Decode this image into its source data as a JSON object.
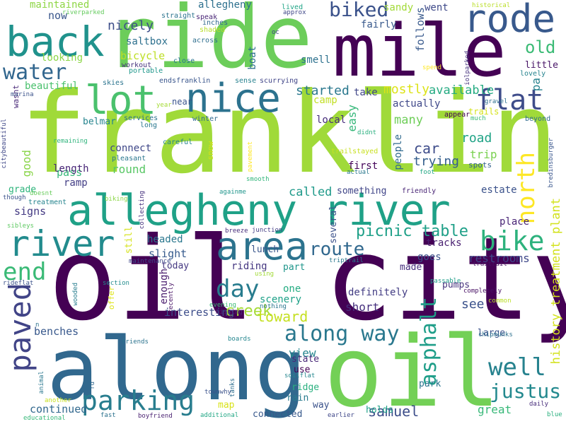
{
  "words": [
    {
      "text": "franklin",
      "color": "#a0da39"
    },
    {
      "text": "oil city",
      "color": "#440154"
    },
    {
      "text": "along",
      "color": "#31688e"
    },
    {
      "text": "oil",
      "color": "#73d056"
    },
    {
      "text": "ride",
      "color": "#6ccd5a"
    },
    {
      "text": "mile",
      "color": "#440154"
    },
    {
      "text": "allegheny river",
      "color": "#1fa187"
    },
    {
      "text": "back",
      "color": "#20928c"
    },
    {
      "text": "nice",
      "color": "#2c728e"
    },
    {
      "text": "rode",
      "color": "#38598c"
    },
    {
      "text": "lot",
      "color": "#4ac16d"
    },
    {
      "text": "river",
      "color": "#228b8d"
    },
    {
      "text": "area",
      "color": "#2c738e"
    },
    {
      "text": "paved",
      "color": "#414487"
    },
    {
      "text": "bike",
      "color": "#2db27d"
    },
    {
      "text": "parking",
      "color": "#287d8e"
    },
    {
      "text": "north",
      "color": "#fde725"
    },
    {
      "text": "end",
      "color": "#3aba76"
    },
    {
      "text": "water",
      "color": "#31668e"
    },
    {
      "text": "flat",
      "color": "#3e4c8a"
    },
    {
      "text": "well",
      "color": "#26828e"
    },
    {
      "text": "justus",
      "color": "#23898e"
    },
    {
      "text": "along way",
      "color": "#2a788e"
    },
    {
      "text": "asphalt",
      "color": "#1f9e89"
    },
    {
      "text": "day",
      "color": "#287c8e"
    },
    {
      "text": "route",
      "color": "#31688e"
    },
    {
      "text": "biked",
      "color": "#3b528b"
    },
    {
      "text": "old",
      "color": "#3bbb75"
    },
    {
      "text": "picnic table",
      "color": "#1fa088"
    },
    {
      "text": "creek",
      "color": "#a5db36"
    },
    {
      "text": "toward",
      "color": "#c5e021"
    },
    {
      "text": "samuel",
      "color": "#3d4e8a"
    },
    {
      "text": "mostly",
      "color": "#dde318"
    },
    {
      "text": "started",
      "color": "#2a788e"
    },
    {
      "text": "available",
      "color": "#25ab82"
    },
    {
      "text": "history treatment plant",
      "color": "#d2e21b"
    },
    {
      "text": "car",
      "color": "#3e4c8a"
    },
    {
      "text": "trying",
      "color": "#355f8d"
    },
    {
      "text": "restrooms",
      "color": "#3f4889"
    },
    {
      "text": "great",
      "color": "#37b878"
    },
    {
      "text": "view",
      "color": "#24868e"
    },
    {
      "text": "short",
      "color": "#46307e"
    },
    {
      "text": "many",
      "color": "#6ece58"
    },
    {
      "text": "see",
      "color": "#3b528b"
    },
    {
      "text": "called",
      "color": "#1f9a8a"
    },
    {
      "text": "continued",
      "color": "#31688e"
    },
    {
      "text": "maintained",
      "color": "#8ed645"
    },
    {
      "text": "nicely",
      "color": "#3d4e8a"
    },
    {
      "text": "bicycle",
      "color": "#bddf26"
    },
    {
      "text": "saltbox",
      "color": "#2d708e"
    },
    {
      "text": "allegheny",
      "color": "#2d708e"
    },
    {
      "text": "follows",
      "color": "#38598c"
    },
    {
      "text": "fairly",
      "color": "#38598c"
    },
    {
      "text": "sandy",
      "color": "#a2da37"
    },
    {
      "text": "went",
      "color": "#3e4989"
    },
    {
      "text": "road",
      "color": "#20a386"
    },
    {
      "text": "trip",
      "color": "#7ad151"
    },
    {
      "text": "pa",
      "color": "#26828e"
    },
    {
      "text": "now",
      "color": "#39568c"
    },
    {
      "text": "looking",
      "color": "#8bd646"
    },
    {
      "text": "beautiful",
      "color": "#4ac16d"
    },
    {
      "text": "smell",
      "color": "#2d718e"
    },
    {
      "text": "boat",
      "color": "#2d708e"
    },
    {
      "text": "camp",
      "color": "#c2df23"
    },
    {
      "text": "take",
      "color": "#404688"
    },
    {
      "text": "actually",
      "color": "#3f4889"
    },
    {
      "text": "local",
      "color": "#472d7b"
    },
    {
      "text": "easy",
      "color": "#35b779"
    },
    {
      "text": "good",
      "color": "#89d548"
    },
    {
      "text": "pass",
      "color": "#35b779"
    },
    {
      "text": "connect",
      "color": "#3f4788"
    },
    {
      "text": "round",
      "color": "#58c765"
    },
    {
      "text": "length",
      "color": "#482677"
    },
    {
      "text": "ramp",
      "color": "#433e85"
    },
    {
      "text": "signs",
      "color": "#443a83"
    },
    {
      "text": "grade",
      "color": "#2fb47c"
    },
    {
      "text": "first",
      "color": "#450559"
    },
    {
      "text": "people",
      "color": "#306a8e"
    },
    {
      "text": "estate",
      "color": "#3b528b"
    },
    {
      "text": "place",
      "color": "#482475"
    },
    {
      "text": "tracks",
      "color": "#481f70"
    },
    {
      "text": "goes",
      "color": "#3b528b"
    },
    {
      "text": "made",
      "color": "#472f7d"
    },
    {
      "text": "pumps",
      "color": "#46337e"
    },
    {
      "text": "interesting",
      "color": "#3d4d8a"
    },
    {
      "text": "definitely",
      "color": "#433d84"
    },
    {
      "text": "scenery",
      "color": "#1fa188"
    },
    {
      "text": "one",
      "color": "#25ac82"
    },
    {
      "text": "riding",
      "color": "#453781"
    },
    {
      "text": "today",
      "color": "#453882"
    },
    {
      "text": "enough",
      "color": "#481b6d"
    },
    {
      "text": "slight",
      "color": "#375b8d"
    },
    {
      "text": "headed",
      "color": "#2a778e"
    },
    {
      "text": "benches",
      "color": "#38588c"
    },
    {
      "text": "lunch",
      "color": "#39568c"
    },
    {
      "text": "something",
      "color": "#404588"
    },
    {
      "text": "several",
      "color": "#3b528b"
    },
    {
      "text": "part",
      "color": "#1f968b"
    },
    {
      "text": "state",
      "color": "#482878"
    },
    {
      "text": "use",
      "color": "#440154"
    },
    {
      "text": "ridge",
      "color": "#2ab07f"
    },
    {
      "text": "rain",
      "color": "#297b8e"
    },
    {
      "text": "way",
      "color": "#3b528b"
    },
    {
      "text": "map",
      "color": "#d8e219"
    },
    {
      "text": "holds",
      "color": "#1fa188"
    },
    {
      "text": "connected",
      "color": "#38598c"
    },
    {
      "text": "park",
      "color": "#2b758e"
    },
    {
      "text": "large",
      "color": "#3b528b"
    },
    {
      "text": "trails",
      "color": "#d5e21a"
    },
    {
      "text": "spots",
      "color": "#33628d"
    },
    {
      "text": "little",
      "color": "#481467"
    },
    {
      "text": "lovely",
      "color": "#25838e"
    },
    {
      "text": "beyond",
      "color": "#2f6c8e"
    },
    {
      "text": "friendly",
      "color": "#482475"
    },
    {
      "text": "near",
      "color": "#3a548c"
    },
    {
      "text": "belmar",
      "color": "#25848e"
    },
    {
      "text": "skies",
      "color": "#2b748e"
    },
    {
      "text": "workout",
      "color": "#46327e"
    },
    {
      "text": "portable",
      "color": "#1f978b"
    },
    {
      "text": "close",
      "color": "#2a768e"
    },
    {
      "text": "speak",
      "color": "#482576"
    },
    {
      "text": "inches",
      "color": "#31688e"
    },
    {
      "text": "shaded",
      "color": "#b8de29"
    },
    {
      "text": "across",
      "color": "#2e6e8e"
    },
    {
      "text": "sense",
      "color": "#26818e"
    },
    {
      "text": "scurrying",
      "color": "#404588"
    },
    {
      "text": "endsfranklin",
      "color": "#39558c"
    },
    {
      "text": "straight",
      "color": "#2b748e"
    },
    {
      "text": "lived",
      "color": "#20a486"
    },
    {
      "text": "approx",
      "color": "#3f4788"
    },
    {
      "text": "oc",
      "color": "#3f4788"
    },
    {
      "text": "riverparked",
      "color": "#65cb5e"
    },
    {
      "text": "historical",
      "color": "#bade28"
    },
    {
      "text": "spend",
      "color": "#fde725"
    },
    {
      "text": "iolparked",
      "color": "#46337e"
    },
    {
      "text": "gravel",
      "color": "#2d708e"
    },
    {
      "text": "appear",
      "color": "#440154"
    },
    {
      "text": "much",
      "color": "#3aba76"
    },
    {
      "text": "careful",
      "color": "#25838e"
    },
    {
      "text": "services",
      "color": "#2c738e"
    },
    {
      "text": "long",
      "color": "#2a788e"
    },
    {
      "text": "year",
      "color": "#a5db36"
    },
    {
      "text": "winter",
      "color": "#30698e"
    },
    {
      "text": "snow",
      "color": "#d2e21b"
    },
    {
      "text": "pleasant",
      "color": "#2a778e"
    },
    {
      "text": "wasnt",
      "color": "#482878"
    },
    {
      "text": "marina",
      "color": "#3b528b"
    },
    {
      "text": "remaining",
      "color": "#2fb47c"
    },
    {
      "text": "citybeautiful",
      "color": "#3f4788"
    },
    {
      "text": "treatment",
      "color": "#25848e"
    },
    {
      "text": "though",
      "color": "#3b528b"
    },
    {
      "text": "doesnt",
      "color": "#67cc5c"
    },
    {
      "text": "sibleys",
      "color": "#5ec962"
    },
    {
      "text": "biking",
      "color": "#8bd646"
    },
    {
      "text": "collecting",
      "color": "#46327e"
    },
    {
      "text": "againme",
      "color": "#1f958b"
    },
    {
      "text": "smooth",
      "color": "#32b67a"
    },
    {
      "text": "pavement",
      "color": "#fde725"
    },
    {
      "text": "trailstayed",
      "color": "#c8e020"
    },
    {
      "text": "didnt",
      "color": "#2ab07f"
    },
    {
      "text": "actual",
      "color": "#2a788e"
    },
    {
      "text": "foot",
      "color": "#22a884"
    },
    {
      "text": "bredinsburger",
      "color": "#39568c"
    },
    {
      "text": "breeze",
      "color": "#472d7b"
    },
    {
      "text": "junction",
      "color": "#433e85"
    },
    {
      "text": "still",
      "color": "#d5e21a"
    },
    {
      "text": "maintenance",
      "color": "#3e4989"
    },
    {
      "text": "triptrail",
      "color": "#2a788e"
    },
    {
      "text": "traitrail",
      "color": "#471164"
    },
    {
      "text": "using",
      "color": "#a2da37"
    },
    {
      "text": "rideflat",
      "color": "#3b528b"
    },
    {
      "text": "section",
      "color": "#228c8d"
    },
    {
      "text": "recently",
      "color": "#471365"
    },
    {
      "text": "wooded",
      "color": "#287d8e"
    },
    {
      "text": "offer",
      "color": "#dde318"
    },
    {
      "text": "evening",
      "color": "#3aba76"
    },
    {
      "text": "missing",
      "color": "#482878"
    },
    {
      "text": "passable",
      "color": "#1f9e89"
    },
    {
      "text": "completely",
      "color": "#471063"
    },
    {
      "text": "common",
      "color": "#bade28"
    },
    {
      "text": "chipmunks",
      "color": "#2d708e"
    },
    {
      "text": "n",
      "color": "#2c728e"
    },
    {
      "text": "friends",
      "color": "#2c738e"
    },
    {
      "text": "boards",
      "color": "#24868e"
    },
    {
      "text": "soilflat",
      "color": "#24868e"
    },
    {
      "text": "animal",
      "color": "#2a778e"
    },
    {
      "text": "rd",
      "color": "#31688e"
    },
    {
      "text": "townwhy",
      "color": "#3b528b"
    },
    {
      "text": "tanks",
      "color": "#2e6e8e"
    },
    {
      "text": "another",
      "color": "#c8e020"
    },
    {
      "text": "educational",
      "color": "#36b878"
    },
    {
      "text": "fast",
      "color": "#2c728e"
    },
    {
      "text": "boyfriend",
      "color": "#481f70"
    },
    {
      "text": "additional",
      "color": "#22a785"
    },
    {
      "text": "earlier",
      "color": "#3f4788"
    },
    {
      "text": "daily",
      "color": "#472c7a"
    },
    {
      "text": "blue",
      "color": "#2ab07f"
    },
    {
      "text": "nothing",
      "color": "#2a768e"
    }
  ]
}
